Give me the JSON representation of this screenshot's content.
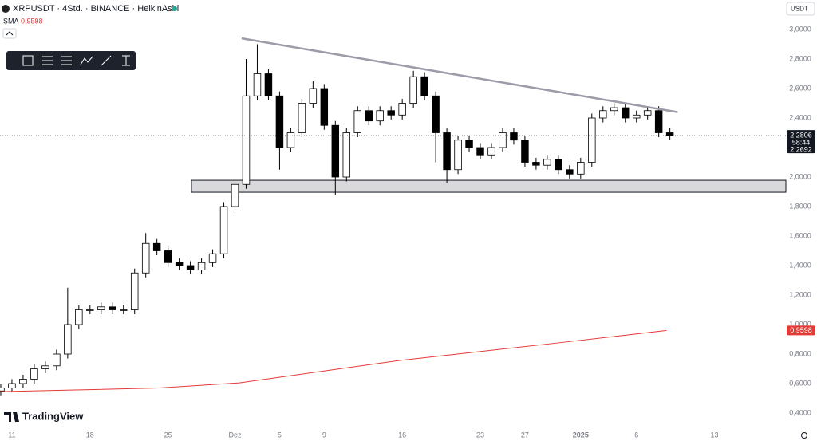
{
  "header": {
    "symbol": "XRPUSDT · 4Std. · BINANCE · HeikinAshi",
    "indicator": "SMA",
    "currency": "USDT"
  },
  "branding": "TradingView",
  "chart_data": {
    "type": "candlestick",
    "up_color": "#ffffff",
    "down_color": "#000000",
    "border_color": "#000000",
    "x": [
      -1,
      0,
      1,
      2,
      3,
      4,
      5,
      6,
      7,
      8,
      9,
      10,
      11,
      12,
      13,
      14,
      15,
      16,
      17,
      18,
      19,
      20,
      21,
      22,
      23,
      24,
      25,
      26,
      27,
      28,
      29,
      30,
      31,
      32,
      33,
      34,
      35,
      36,
      37,
      38,
      39,
      40,
      41,
      42,
      43,
      44,
      45,
      46,
      47,
      48,
      49,
      50,
      51,
      52,
      53,
      54,
      55,
      56,
      57,
      58,
      59
    ],
    "open": [
      0.55,
      0.57,
      0.6,
      0.63,
      0.7,
      0.72,
      0.8,
      1.0,
      1.1,
      1.1,
      1.12,
      1.1,
      1.1,
      1.35,
      1.55,
      1.5,
      1.42,
      1.4,
      1.37,
      1.42,
      1.48,
      1.8,
      1.95,
      2.55,
      2.7,
      2.55,
      2.2,
      2.3,
      2.5,
      2.6,
      2.35,
      2.0,
      2.3,
      2.45,
      2.38,
      2.45,
      2.42,
      2.5,
      2.68,
      2.55,
      2.3,
      2.05,
      2.25,
      2.2,
      2.15,
      2.2,
      2.3,
      2.25,
      2.1,
      2.08,
      2.12,
      2.05,
      2.02,
      2.1,
      2.4,
      2.45,
      2.47,
      2.4,
      2.42,
      2.45,
      2.3
    ],
    "high": [
      0.6,
      0.63,
      0.66,
      0.73,
      0.75,
      0.83,
      1.25,
      1.13,
      1.13,
      1.15,
      1.15,
      1.13,
      1.38,
      1.62,
      1.58,
      1.53,
      1.45,
      1.43,
      1.45,
      1.51,
      1.83,
      1.98,
      2.8,
      2.9,
      2.73,
      2.58,
      2.33,
      2.53,
      2.65,
      2.63,
      2.38,
      2.33,
      2.48,
      2.48,
      2.48,
      2.48,
      2.53,
      2.72,
      2.71,
      2.58,
      2.33,
      2.28,
      2.28,
      2.23,
      2.23,
      2.33,
      2.33,
      2.28,
      2.13,
      2.15,
      2.15,
      2.08,
      2.13,
      2.43,
      2.48,
      2.5,
      2.5,
      2.45,
      2.48,
      2.48,
      2.33
    ],
    "low": [
      0.52,
      0.54,
      0.57,
      0.6,
      0.67,
      0.69,
      0.77,
      0.97,
      1.07,
      1.07,
      1.07,
      1.07,
      1.07,
      1.32,
      1.47,
      1.39,
      1.37,
      1.34,
      1.34,
      1.39,
      1.45,
      1.77,
      1.92,
      2.52,
      2.52,
      2.05,
      2.17,
      2.27,
      2.47,
      2.32,
      1.88,
      1.97,
      2.27,
      2.35,
      2.35,
      2.39,
      2.39,
      2.47,
      2.52,
      2.1,
      1.96,
      2.02,
      2.17,
      2.12,
      2.12,
      2.17,
      2.22,
      2.07,
      2.05,
      2.05,
      2.02,
      1.99,
      1.99,
      2.07,
      2.37,
      2.42,
      2.37,
      2.37,
      2.39,
      2.27,
      2.25
    ],
    "close": [
      0.57,
      0.6,
      0.63,
      0.7,
      0.72,
      0.8,
      1.0,
      1.1,
      1.1,
      1.12,
      1.1,
      1.1,
      1.35,
      1.55,
      1.5,
      1.42,
      1.4,
      1.37,
      1.42,
      1.48,
      1.8,
      1.95,
      2.55,
      2.7,
      2.55,
      2.2,
      2.3,
      2.5,
      2.6,
      2.35,
      2.0,
      2.3,
      2.45,
      2.38,
      2.45,
      2.42,
      2.5,
      2.68,
      2.55,
      2.3,
      2.05,
      2.25,
      2.2,
      2.15,
      2.2,
      2.3,
      2.25,
      2.1,
      2.08,
      2.12,
      2.05,
      2.02,
      2.1,
      2.4,
      2.45,
      2.47,
      2.4,
      2.42,
      2.45,
      2.3,
      2.28
    ],
    "sma": {
      "color": "#e53935",
      "x": [
        -1.07,
        13.2,
        20.4,
        34.7,
        49,
        58.7
      ],
      "values": [
        0.545,
        0.57,
        0.605,
        0.756,
        0.876,
        0.96
      ],
      "last_label": {
        "value": 0.9598,
        "label": "0,9598"
      }
    },
    "trendline": {
      "color": "#9e9aa8",
      "x": [
        20.6,
        59.7
      ],
      "values": [
        2.94,
        2.44
      ]
    },
    "zone": {
      "x": [
        16.1,
        69.4
      ],
      "values": [
        1.897,
        1.978
      ],
      "color": "#d9d9dc"
    },
    "last_price": {
      "value": 2.2806,
      "label": "2,2806"
    },
    "countdown": "58:44",
    "prev_label": "2,2692",
    "xlim": [
      -1.07,
      69.4
    ],
    "ylim": [
      0.31,
      3.2
    ],
    "xticks": [
      {
        "value": 0,
        "label": "11"
      },
      {
        "value": 7,
        "label": "18"
      },
      {
        "value": 14,
        "label": "25"
      },
      {
        "value": 20,
        "label": "Dez"
      },
      {
        "value": 24,
        "label": "5"
      },
      {
        "value": 28,
        "label": "9"
      },
      {
        "value": 35,
        "label": "16"
      },
      {
        "value": 42,
        "label": "23"
      },
      {
        "value": 46,
        "label": "27"
      },
      {
        "value": 51,
        "label": "2025"
      },
      {
        "value": 56,
        "label": "6"
      },
      {
        "value": 63,
        "label": "13"
      }
    ],
    "yticks": [
      {
        "value": 0.4,
        "label": "0,4000"
      },
      {
        "value": 0.6,
        "label": "0,6000"
      },
      {
        "value": 0.8,
        "label": "0,8000"
      },
      {
        "value": 1,
        "label": "1,0000"
      },
      {
        "value": 1.2,
        "label": "1,2000"
      },
      {
        "value": 1.4,
        "label": "1,4000"
      },
      {
        "value": 1.6,
        "label": "1,6000"
      },
      {
        "value": 1.8,
        "label": "1,8000"
      },
      {
        "value": 2,
        "label": "2,0000"
      },
      {
        "value": 2.2,
        "label": "2,2000"
      },
      {
        "value": 2.4,
        "label": "2,4000"
      },
      {
        "value": 2.6,
        "label": "2,6000"
      },
      {
        "value": 2.8,
        "label": "2,8000"
      },
      {
        "value": 3,
        "label": "3,0000"
      }
    ]
  }
}
